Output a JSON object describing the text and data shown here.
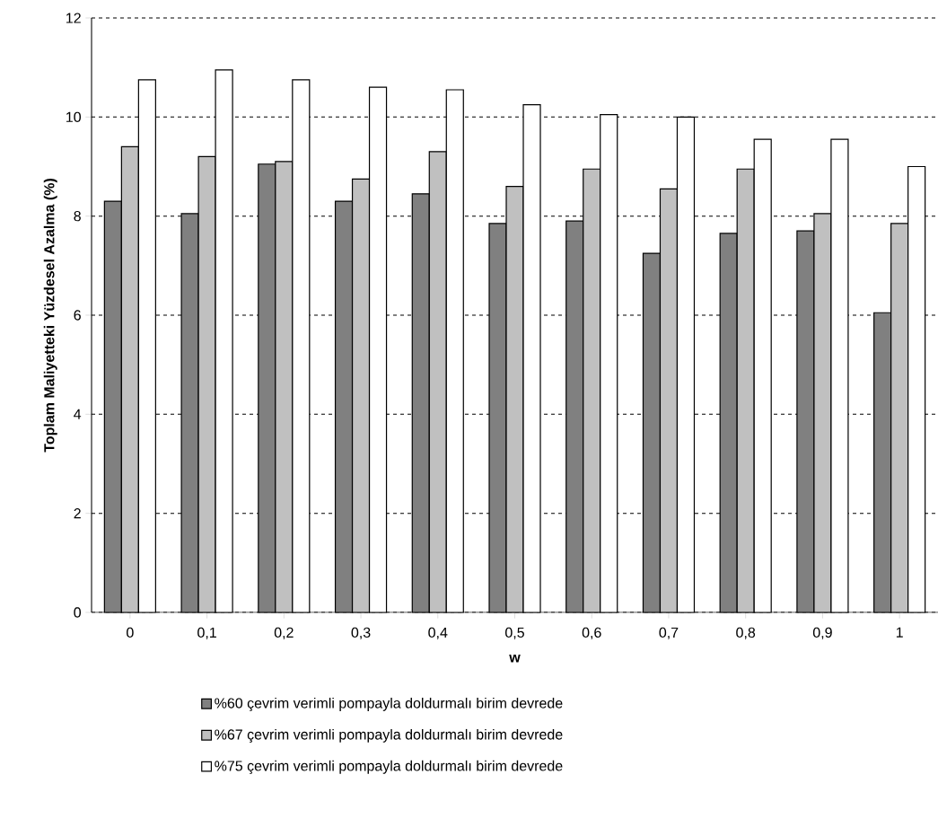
{
  "chart_data": {
    "type": "bar",
    "xlabel": "w",
    "ylabel": "Toplam Maliyetteki Yüzdesel Azalma (%)",
    "categories": [
      "0",
      "0,1",
      "0,2",
      "0,3",
      "0,4",
      "0,5",
      "0,6",
      "0,7",
      "0,8",
      "0,9",
      "1"
    ],
    "series": [
      {
        "name": "%60 çevrim verimli pompayla doldurmalı birim devrede",
        "color": "#808080",
        "values": [
          8.3,
          8.05,
          9.05,
          8.3,
          8.45,
          7.85,
          7.9,
          7.25,
          7.65,
          7.7,
          6.05
        ]
      },
      {
        "name": "%67 çevrim verimli pompayla doldurmalı birim devrede",
        "color": "#c0c0c0",
        "values": [
          9.4,
          9.2,
          9.1,
          8.75,
          9.3,
          8.6,
          8.95,
          8.55,
          8.95,
          8.05,
          7.85
        ]
      },
      {
        "name": "%75 çevrim verimli pompayla doldurmalı birim devrede",
        "color": "#ffffff",
        "values": [
          10.75,
          10.95,
          10.75,
          10.6,
          10.55,
          10.25,
          10.05,
          10.0,
          9.55,
          9.55,
          9.0
        ]
      }
    ],
    "ylim": [
      0,
      12
    ],
    "yticks": [
      0,
      2,
      4,
      6,
      8,
      10,
      12
    ],
    "grid": "y",
    "legend": "bottom"
  }
}
